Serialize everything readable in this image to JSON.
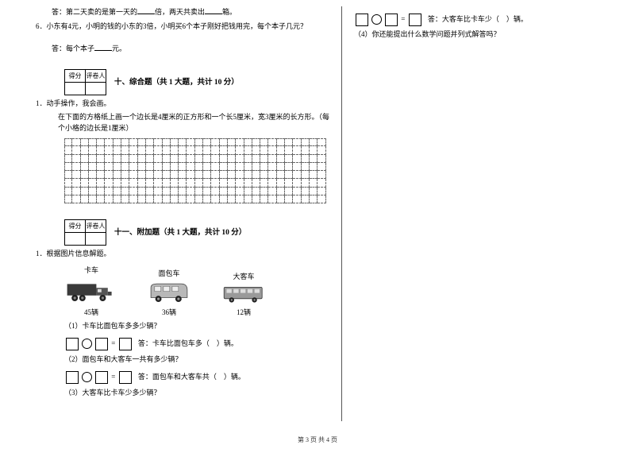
{
  "leftColumn": {
    "topLines": {
      "l1": "答：第二天卖的是第一天的",
      "l1b": "倍，两天共卖出",
      "l1c": "箱。",
      "q6": "6．小东有4元，小明的钱的小东的3倍，小明买6个本子刚好把钱用完，每个本子几元？",
      "ans6a": "答：每个本子",
      "ans6b": "元。"
    },
    "scoreHeaders": {
      "a": "得分",
      "b": "评卷人"
    },
    "section10": {
      "title": "十、综合题（共 1 大题，共计 10 分）",
      "q1": "1．动手操作，我会画。",
      "q1desc": "在下面的方格纸上画一个边长是4厘米的正方形和一个长5厘米，宽3厘米的长方形。（每个小格的边长是1厘米）"
    },
    "grid": {
      "rows": 8,
      "cols": 32
    },
    "section11": {
      "title": "十一、附加题（共 1 大题，共计 10 分）",
      "q1": "1．根据图片信息解题。"
    },
    "vehicles": {
      "truck": {
        "label": "卡车",
        "count": "45辆"
      },
      "van": {
        "label": "面包车",
        "count": "36辆"
      },
      "bus": {
        "label": "大客车",
        "count": "12辆"
      }
    },
    "subq": {
      "s1": "（1）卡车比面包车多多少辆？",
      "a1": "答：卡车比面包车多（　）辆。",
      "s2": "（2）面包车和大客车一共有多少辆？",
      "a2": "答：面包车和大客车共（　）辆。",
      "s3": "（3）大客车比卡车少多少辆？"
    }
  },
  "rightColumn": {
    "a3": "答：大客车比卡车少（　）辆。",
    "s4": "（4）你还能提出什么数学问题并列式解答吗？"
  },
  "footer": "第 3 页 共 4 页",
  "colors": {
    "text": "#000000",
    "bg": "#ffffff",
    "gridDash": "#666666",
    "vehicleDark": "#3a3a3a",
    "vehicleMid": "#6a6a6a",
    "vehicleLight": "#b8b8b8"
  }
}
